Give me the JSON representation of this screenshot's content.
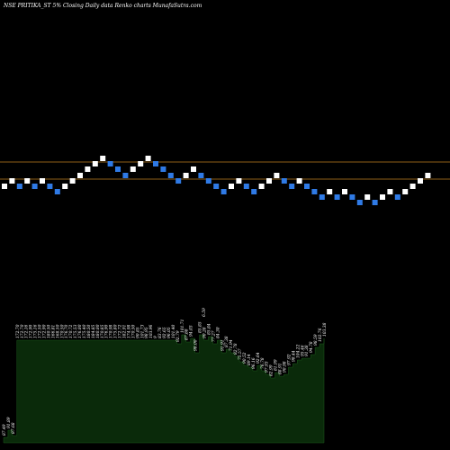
{
  "header": {
    "title": "NSE PRITIKA_ST 5% Closing Daily data Renko charts MunafaSutra.com"
  },
  "chart_data": {
    "type": "renko",
    "ylim": [
      0,
      500
    ],
    "reference_lines": [
      {
        "value": 180,
        "color": "#c08020"
      },
      {
        "value": 199,
        "color": "#c08020"
      }
    ],
    "bricks": [
      {
        "dir": "up",
        "y": 207
      },
      {
        "dir": "up",
        "y": 201
      },
      {
        "dir": "down",
        "y": 207
      },
      {
        "dir": "up",
        "y": 201
      },
      {
        "dir": "down",
        "y": 207
      },
      {
        "dir": "up",
        "y": 201
      },
      {
        "dir": "down",
        "y": 207
      },
      {
        "dir": "down",
        "y": 213
      },
      {
        "dir": "up",
        "y": 207
      },
      {
        "dir": "up",
        "y": 201
      },
      {
        "dir": "up",
        "y": 195
      },
      {
        "dir": "up",
        "y": 188
      },
      {
        "dir": "up",
        "y": 182
      },
      {
        "dir": "up",
        "y": 176
      },
      {
        "dir": "down",
        "y": 182
      },
      {
        "dir": "down",
        "y": 188
      },
      {
        "dir": "down",
        "y": 195
      },
      {
        "dir": "up",
        "y": 188
      },
      {
        "dir": "up",
        "y": 182
      },
      {
        "dir": "up",
        "y": 176
      },
      {
        "dir": "down",
        "y": 182
      },
      {
        "dir": "down",
        "y": 188
      },
      {
        "dir": "down",
        "y": 195
      },
      {
        "dir": "down",
        "y": 201
      },
      {
        "dir": "up",
        "y": 195
      },
      {
        "dir": "up",
        "y": 188
      },
      {
        "dir": "down",
        "y": 195
      },
      {
        "dir": "down",
        "y": 201
      },
      {
        "dir": "down",
        "y": 207
      },
      {
        "dir": "down",
        "y": 213
      },
      {
        "dir": "up",
        "y": 207
      },
      {
        "dir": "up",
        "y": 201
      },
      {
        "dir": "down",
        "y": 207
      },
      {
        "dir": "down",
        "y": 213
      },
      {
        "dir": "up",
        "y": 207
      },
      {
        "dir": "up",
        "y": 201
      },
      {
        "dir": "up",
        "y": 195
      },
      {
        "dir": "down",
        "y": 201
      },
      {
        "dir": "down",
        "y": 207
      },
      {
        "dir": "up",
        "y": 201
      },
      {
        "dir": "down",
        "y": 207
      },
      {
        "dir": "down",
        "y": 213
      },
      {
        "dir": "down",
        "y": 219
      },
      {
        "dir": "up",
        "y": 213
      },
      {
        "dir": "down",
        "y": 219
      },
      {
        "dir": "up",
        "y": 213
      },
      {
        "dir": "down",
        "y": 219
      },
      {
        "dir": "down",
        "y": 225
      },
      {
        "dir": "up",
        "y": 219
      },
      {
        "dir": "down",
        "y": 225
      },
      {
        "dir": "up",
        "y": 219
      },
      {
        "dir": "up",
        "y": 213
      },
      {
        "dir": "down",
        "y": 219
      },
      {
        "dir": "up",
        "y": 213
      },
      {
        "dir": "up",
        "y": 207
      },
      {
        "dir": "up",
        "y": 201
      },
      {
        "dir": "up",
        "y": 195
      }
    ],
    "volume": {
      "baseline": 492,
      "fill_color": "#0a2a0a",
      "tops": [
        486,
        478,
        484,
        378,
        378,
        378,
        378,
        378,
        378,
        378,
        378,
        378,
        378,
        378,
        378,
        378,
        378,
        378,
        378,
        378,
        378,
        378,
        378,
        378,
        378,
        378,
        378,
        378,
        378,
        378,
        378,
        378,
        378,
        378,
        378,
        378,
        378,
        378,
        378,
        382,
        372,
        380,
        376,
        392,
        372,
        378,
        374,
        382,
        378,
        392,
        388,
        392,
        396,
        402,
        406,
        408,
        412,
        406,
        412,
        416,
        420,
        414,
        418,
        416,
        408,
        404,
        400,
        398,
        398,
        394,
        386,
        382,
        376
      ],
      "labels": [
        "87.49",
        "91.89",
        "87.68",
        "172.70",
        "172.70",
        "172.16",
        "172.90",
        "175.16",
        "172.50",
        "172.90",
        "180.50",
        "166.81",
        "168.50",
        "170.50",
        "176.70",
        "170.72",
        "175.53",
        "176.00",
        "175.40",
        "180.50",
        "184.85",
        "180.00",
        "170.85",
        "176.90",
        "170.98",
        "175.80",
        "172.72",
        "182.91",
        "174.98",
        "170.50",
        "90.85",
        "101.73",
        "98.95",
        "103.96",
        "9",
        "83.76",
        "92.65",
        "96.05",
        "101.40",
        "92.79",
        "101.71",
        "87.88",
        "94.03",
        "98.00",
        "85.85",
        "90.28",
        "85.84",
        "77.27",
        "84.30",
        "91.91",
        "87.38",
        "71.94",
        "82.78",
        "75.57",
        "90.52",
        "89.14",
        "96.16",
        "92.64",
        "76.78",
        "97.93",
        "82.99",
        "81.99",
        "88.91",
        "90.98",
        "97.92",
        "98.44",
        "104.22",
        "95.46",
        "91.38",
        "94.78",
        "98.59",
        "102.76",
        "103.38"
      ],
      "extra_label": "6.59"
    }
  }
}
